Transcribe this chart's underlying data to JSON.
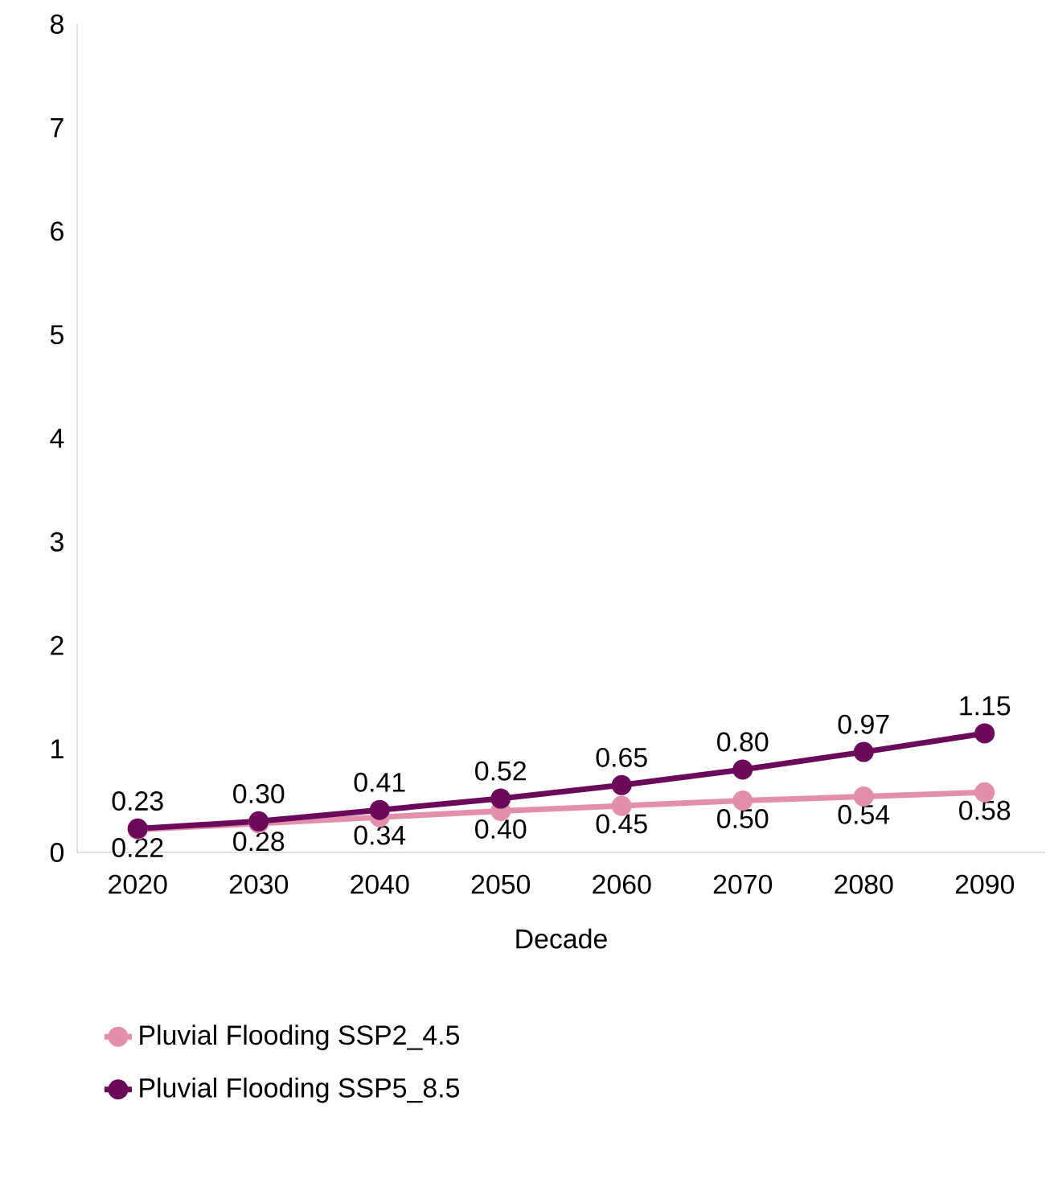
{
  "chart_data": {
    "type": "line",
    "xlabel": "Decade",
    "categories": [
      "2020",
      "2030",
      "2040",
      "2050",
      "2060",
      "2070",
      "2080",
      "2090"
    ],
    "series": [
      {
        "name": "Pluvial Flooding SSP2_4.5",
        "color": "#e38fab",
        "values": [
          0.22,
          0.28,
          0.34,
          0.4,
          0.45,
          0.5,
          0.54,
          0.58
        ],
        "value_labels": [
          "0.22",
          "0.28",
          "0.34",
          "0.40",
          "0.45",
          "0.50",
          "0.54",
          "0.58"
        ]
      },
      {
        "name": "Pluvial Flooding SSP5_8.5",
        "color": "#6b0a5a",
        "values": [
          0.23,
          0.3,
          0.41,
          0.52,
          0.65,
          0.8,
          0.97,
          1.15
        ],
        "value_labels": [
          "0.23",
          "0.30",
          "0.41",
          "0.52",
          "0.65",
          "0.80",
          "0.97",
          "1.15"
        ]
      }
    ],
    "ylim": [
      0,
      8
    ],
    "yticks": [
      0,
      1,
      2,
      3,
      4,
      5,
      6,
      7,
      8
    ],
    "grid": false,
    "legend": "bottom",
    "marker": "circle",
    "line_style": "solid"
  }
}
